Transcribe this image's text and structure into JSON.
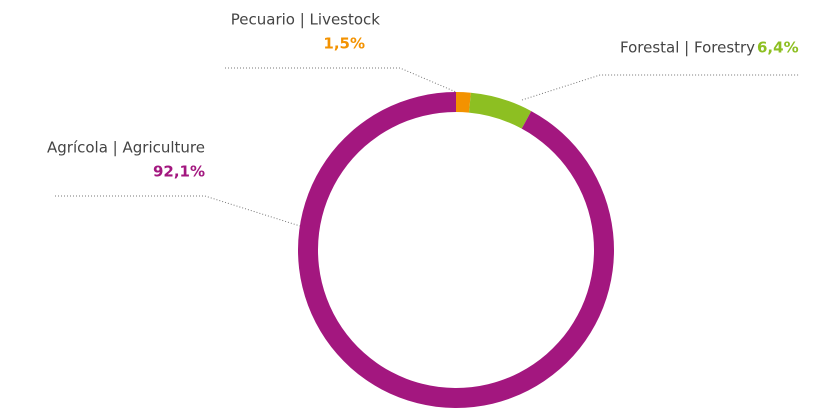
{
  "chart_data": {
    "type": "donut",
    "categories": [
      "Pecuario | Livestock",
      "Forestal | Forestry",
      "Agrícola | Agriculture"
    ],
    "values": [
      1.5,
      6.4,
      92.1
    ],
    "value_labels": [
      "1,5%",
      "6,4%",
      "92,1%"
    ],
    "colors": [
      "#f39200",
      "#8dbf22",
      "#a3177f"
    ]
  }
}
